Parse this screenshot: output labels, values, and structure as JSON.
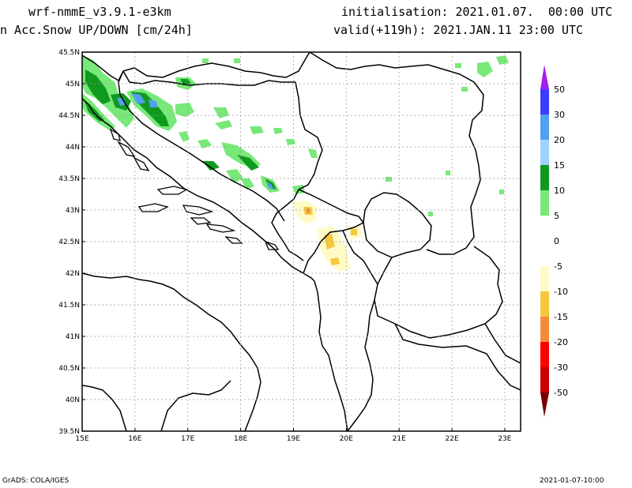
{
  "header": {
    "model": "wrf-nmmE_v3.9.1-e3km",
    "variable": "n Acc.Snow UP/DOWN [cm/24h]",
    "init": "initialisation: 2021.01.07.  00:00 UTC",
    "valid": "valid(+119h): 2021.JAN.11 23:00 UTC"
  },
  "footer": {
    "credit": "GrADS: COLA/IGES",
    "timestamp": "2021-01-07-10:00"
  },
  "map": {
    "lon_range": [
      15,
      23.3
    ],
    "lat_range": [
      39.5,
      45.5
    ],
    "lon_ticks": [
      "15E",
      "16E",
      "17E",
      "18E",
      "19E",
      "20E",
      "21E",
      "22E",
      "23E"
    ],
    "lat_ticks": [
      "45.5N",
      "45N",
      "44.5N",
      "44N",
      "43.5N",
      "43N",
      "42.5N",
      "42N",
      "41.5N",
      "41N",
      "40.5N",
      "40N",
      "39.5N"
    ],
    "grid_lines": true
  },
  "colorbar": {
    "labels": [
      "50",
      "30",
      "20",
      "15",
      "10",
      "5",
      "0",
      "-5",
      "-10",
      "-15",
      "-20",
      "-30",
      "-50"
    ],
    "colors": {
      "top_arrow": "#a020f0",
      "gt30": "#3c3cff",
      "20_30": "#50a0f0",
      "15_20": "#a0d2ff",
      "10_15": "#0f9a1e",
      "5_10": "#78e878",
      "m5_5": "#ffffff",
      "m10_m5": "#fffac8",
      "m15_m10": "#f5c83c",
      "m20_m15": "#f58c3c",
      "m30_m20": "#ff0000",
      "m50_m30": "#c80000",
      "bottom_arrow": "#780000"
    }
  }
}
